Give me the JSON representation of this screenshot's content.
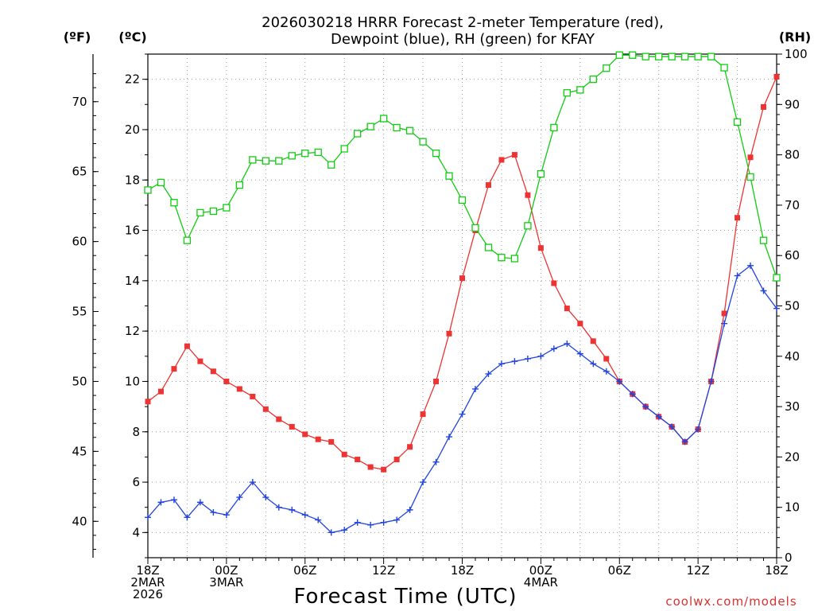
{
  "colors": {
    "temperature": "#ee3333",
    "dewpoint": "#2244dd",
    "rh": "#11cc11",
    "grid": "#999999"
  },
  "chart_data": {
    "type": "line",
    "title": [
      "2026030218 HRRR Forecast 2-meter Temperature (red),",
      "Dewpoint (blue), RH (green) for KFAY"
    ],
    "xlabel": "Forecast Time (UTC)",
    "credit": "coolwx.com/models",
    "units": {
      "fahrenheit": "(ºF)",
      "celsius": "(ºC)",
      "rh": "(RH)"
    },
    "xlim_hours": [
      0,
      48
    ],
    "ylim_celsius": [
      3.0,
      23.0
    ],
    "ylim_rh": [
      0,
      100
    ],
    "celsius_ticks": [
      "4",
      "6",
      "8",
      "10",
      "12",
      "14",
      "16",
      "18",
      "20",
      "22"
    ],
    "fahrenheit_ticks": [
      "40",
      "45",
      "50",
      "55",
      "60",
      "65",
      "70"
    ],
    "rh_ticks": [
      "0",
      "10",
      "20",
      "30",
      "40",
      "50",
      "60",
      "70",
      "80",
      "90",
      "100"
    ],
    "x_ticks": [
      {
        "hour": 0,
        "labels": [
          "18Z",
          "2MAR",
          "2026"
        ]
      },
      {
        "hour": 6,
        "labels": [
          "00Z",
          "3MAR"
        ]
      },
      {
        "hour": 12,
        "labels": [
          "06Z"
        ]
      },
      {
        "hour": 18,
        "labels": [
          "12Z"
        ]
      },
      {
        "hour": 24,
        "labels": [
          "18Z"
        ]
      },
      {
        "hour": 30,
        "labels": [
          "00Z",
          "4MAR"
        ]
      },
      {
        "hour": 36,
        "labels": [
          "06Z"
        ]
      },
      {
        "hour": 42,
        "labels": [
          "12Z"
        ]
      },
      {
        "hour": 48,
        "labels": [
          "18Z"
        ]
      }
    ],
    "series": [
      {
        "name": "Temperature",
        "unit": "C",
        "marker": "square",
        "values": [
          9.2,
          9.6,
          10.5,
          11.4,
          10.8,
          10.4,
          10.0,
          9.7,
          9.4,
          8.9,
          8.5,
          8.2,
          7.9,
          7.7,
          7.6,
          7.1,
          6.9,
          6.6,
          6.5,
          6.9,
          7.4,
          8.7,
          10.0,
          11.9,
          14.1,
          16.0,
          17.8,
          18.8,
          19.0,
          17.4,
          15.3,
          13.9,
          12.9,
          12.3,
          11.6,
          10.9,
          10.0,
          9.5,
          9.0,
          8.6,
          8.2,
          7.6,
          8.1,
          10.0,
          12.7,
          16.5,
          18.9,
          20.9,
          22.1
        ]
      },
      {
        "name": "Dewpoint",
        "unit": "C",
        "marker": "plus",
        "values": [
          4.6,
          5.2,
          5.3,
          4.6,
          5.2,
          4.8,
          4.7,
          5.4,
          6.0,
          5.4,
          5.0,
          4.9,
          4.7,
          4.5,
          4.0,
          4.1,
          4.4,
          4.3,
          4.4,
          4.5,
          4.9,
          6.0,
          6.8,
          7.8,
          8.7,
          9.7,
          10.3,
          10.7,
          10.8,
          10.9,
          11.0,
          11.3,
          11.5,
          11.1,
          10.7,
          10.4,
          10.0,
          9.5,
          9.0,
          8.6,
          8.2,
          7.6,
          8.1,
          10.0,
          12.3,
          14.2,
          14.6,
          13.6,
          12.9
        ]
      },
      {
        "name": "RH",
        "unit": "%",
        "marker": "open-square",
        "values": [
          73,
          74.5,
          70.5,
          63,
          68.5,
          68.8,
          69.5,
          74,
          79,
          78.8,
          78.8,
          79.8,
          80.3,
          80.5,
          78,
          81.2,
          84.2,
          85.6,
          87.2,
          85.4,
          84.8,
          82.6,
          80.3,
          75.8,
          71,
          65.5,
          61.6,
          59.6,
          59.4,
          65.9,
          76.2,
          85.4,
          92.3,
          92.9,
          95,
          97.2,
          99.8,
          99.8,
          99.5,
          99.5,
          99.5,
          99.5,
          99.5,
          99.5,
          97.3,
          86.5,
          75.6,
          63,
          55.6
        ]
      }
    ]
  }
}
